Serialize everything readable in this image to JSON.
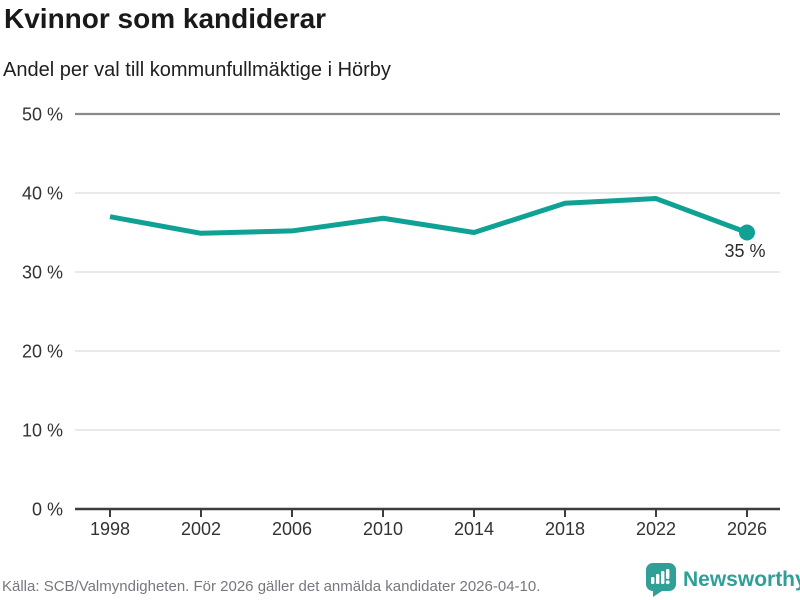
{
  "header": {
    "title": "Kvinnor som kandiderar",
    "subtitle": "Andel per val till kommunfullmäktige i Hörby"
  },
  "chart_data": {
    "type": "line",
    "title": "Kvinnor som kandiderar",
    "subtitle": "Andel per val till kommunfullmäktige i Hörby",
    "categories": [
      "1998",
      "2002",
      "2006",
      "2010",
      "2014",
      "2018",
      "2022",
      "2026"
    ],
    "values": [
      37,
      34.9,
      35.2,
      36.8,
      35,
      38.7,
      39.3,
      35
    ],
    "ylim": [
      0,
      50
    ],
    "y_ticks": [
      0,
      10,
      20,
      30,
      40,
      50
    ],
    "y_tick_labels": [
      "0 %",
      "10 %",
      "20 %",
      "30 %",
      "40 %",
      "50 %"
    ],
    "endpoint_label": "35 %",
    "grid": "horizontal",
    "legend": "none",
    "line_color": "#0fa294",
    "marker_last_point": true
  },
  "footer": {
    "source": "Källa: SCB/Valmyndigheten. För 2026 gäller det anmälda kandidater 2026-04-10.",
    "brand": "Newsworthy",
    "brand_color": "#2f9f97"
  },
  "colors": {
    "line": "#0fa294",
    "grid_light": "#e2e2e2",
    "grid_top": "#8a8a8a",
    "axis": "#3d3d3d",
    "text_axis": "#333333",
    "text_muted": "#77777f"
  }
}
